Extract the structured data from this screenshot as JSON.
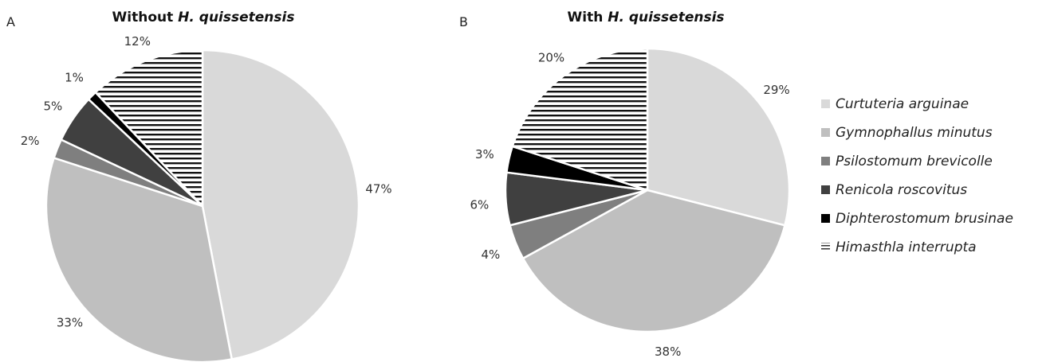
{
  "legend": [
    {
      "name": "Curtuteria arguinae",
      "color": "#d9d9d9",
      "pattern": "solid"
    },
    {
      "name": "Gymnophallus minutus",
      "color": "#bfbfbf",
      "pattern": "solid"
    },
    {
      "name": "Psilostomum brevicolle",
      "color": "#7f7f7f",
      "pattern": "solid"
    },
    {
      "name": "Renicola roscovitus",
      "color": "#404040",
      "pattern": "solid"
    },
    {
      "name": "Diphterostomum brusinae",
      "color": "#000000",
      "pattern": "solid"
    },
    {
      "name": "Himasthla interrupta",
      "color": "#000000",
      "pattern": "horizontal-stripes"
    }
  ],
  "chart_data": [
    {
      "type": "pie",
      "panel": "A",
      "title_prefix": "Without ",
      "title_italic": "H. quissetensis",
      "categories": [
        "Curtuteria arguinae",
        "Gymnophallus minutus",
        "Psilostomum brevicolle",
        "Renicola roscovitus",
        "Diphterostomum brusinae",
        "Himasthla interrupta"
      ],
      "values": [
        47,
        33,
        2,
        5,
        1,
        12
      ],
      "labels": [
        "47%",
        "33%",
        "2%",
        "5%",
        "1%",
        "12%"
      ],
      "legend": "right"
    },
    {
      "type": "pie",
      "panel": "B",
      "title_prefix": "With ",
      "title_italic": "H. quissetensis",
      "categories": [
        "Curtuteria arguinae",
        "Gymnophallus minutus",
        "Psilostomum brevicolle",
        "Renicola roscovitus",
        "Diphterostomum brusinae",
        "Himasthla interrupta"
      ],
      "values": [
        29,
        38,
        4,
        6,
        3,
        20
      ],
      "labels": [
        "29%",
        "38%",
        "4%",
        "6%",
        "3%",
        "20%"
      ],
      "legend": "right"
    }
  ]
}
